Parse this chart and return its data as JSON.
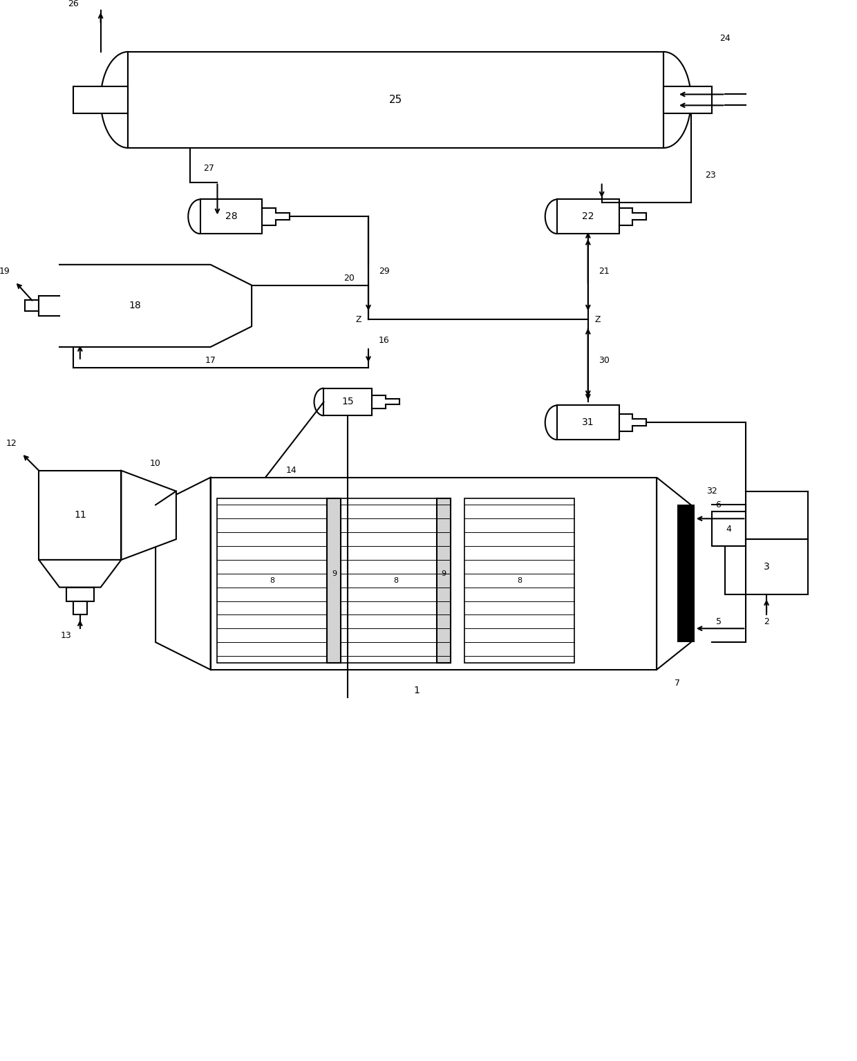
{
  "bg_color": "#ffffff",
  "line_color": "#000000",
  "linewidth": 1.5,
  "fig_width": 12.4,
  "fig_height": 15.35
}
